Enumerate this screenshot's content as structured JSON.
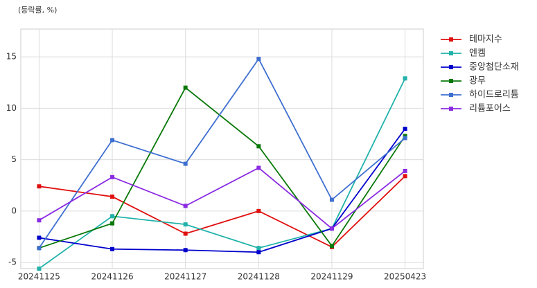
{
  "chart_data": {
    "type": "line",
    "y_label": "(등락률, %)",
    "categories": [
      "20241125",
      "20241126",
      "20241127",
      "20241128",
      "20241129",
      "20250423"
    ],
    "series": [
      {
        "name": "테마지수",
        "color": "#e01010",
        "values": [
          2.4,
          1.4,
          -2.2,
          0,
          -3.5,
          3.4
        ]
      },
      {
        "name": "엔켐",
        "color": "#20b2aa",
        "values": [
          -5.6,
          -0.5,
          -1.3,
          -3.6,
          -1.7,
          12.9
        ]
      },
      {
        "name": "중앙첨단소재",
        "color": "#0000cc",
        "values": [
          -2.6,
          -3.7,
          -3.8,
          -4.0,
          -1.7,
          8.0
        ]
      },
      {
        "name": "광무",
        "color": "#087808",
        "values": [
          -3.6,
          -1.2,
          12.0,
          6.3,
          -3.4,
          7.3
        ]
      },
      {
        "name": "하이드로리튬",
        "color": "#3e6fd0",
        "values": [
          -3.6,
          6.9,
          4.6,
          14.8,
          1.1,
          7.1
        ]
      },
      {
        "name": "리튬포어스",
        "color": "#8a2be2",
        "values": [
          -0.9,
          3.3,
          0.5,
          4.2,
          -1.7,
          3.9
        ]
      }
    ],
    "ylim": [
      -5.6,
      17.7
    ],
    "yticks": [
      -5,
      0,
      5,
      10,
      15
    ],
    "grid": true,
    "legend": "outside-right"
  }
}
